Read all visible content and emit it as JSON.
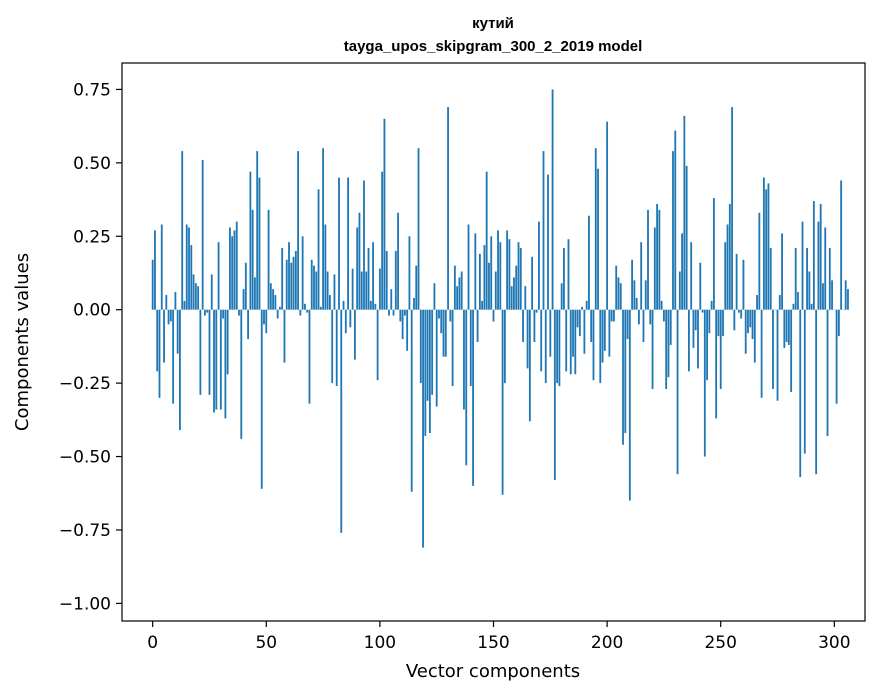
{
  "chart_data": {
    "type": "bar",
    "title": "кутий",
    "subtitle": "tayga_upos_skipgram_300_2_2019 model",
    "xlabel": "Vector components",
    "ylabel": "Components values",
    "xlim": [
      -13.5,
      313.5
    ],
    "ylim": [
      -1.06,
      0.84
    ],
    "xticks": [
      0,
      50,
      100,
      150,
      200,
      250,
      300
    ],
    "yticks": [
      -1.0,
      -0.75,
      -0.5,
      -0.25,
      0.0,
      0.25,
      0.5,
      0.75
    ],
    "ytick_labels": [
      "−1.00",
      "−0.75",
      "−0.50",
      "−0.25",
      "0.00",
      "0.25",
      "0.50",
      "0.75"
    ],
    "bar_color": "#1f77b4",
    "grid": false,
    "values": [
      0.17,
      0.27,
      -0.21,
      -0.3,
      0.29,
      -0.18,
      0.05,
      -0.05,
      -0.04,
      -0.32,
      0.06,
      -0.15,
      -0.41,
      0.54,
      0.03,
      0.29,
      0.28,
      0.22,
      0.12,
      0.09,
      0.08,
      -0.29,
      0.51,
      -0.02,
      -0.01,
      -0.29,
      0.12,
      -0.35,
      -0.34,
      0.23,
      -0.34,
      -0.03,
      -0.37,
      -0.22,
      0.28,
      0.25,
      0.27,
      0.3,
      -0.02,
      -0.44,
      0.07,
      0.16,
      -0.1,
      0.47,
      0.34,
      0.11,
      0.54,
      0.45,
      -0.61,
      -0.05,
      -0.08,
      0.34,
      0.09,
      0.07,
      0.05,
      -0.03,
      0.01,
      0.21,
      -0.18,
      0.17,
      0.23,
      0.16,
      0.18,
      0.2,
      0.54,
      -0.02,
      0.25,
      0.02,
      -0.01,
      -0.32,
      0.17,
      0.15,
      0.13,
      0.41,
      0.01,
      0.55,
      0.29,
      0.13,
      0.05,
      -0.25,
      0.12,
      -0.26,
      0.45,
      -0.76,
      0.03,
      -0.08,
      0.45,
      -0.06,
      0.14,
      -0.17,
      0.28,
      0.33,
      0.13,
      0.44,
      0.13,
      0.21,
      0.03,
      0.23,
      0.02,
      -0.24,
      0.14,
      0.47,
      0.65,
      0.2,
      -0.02,
      0.07,
      -0.02,
      0.2,
      0.33,
      -0.04,
      -0.1,
      -0.02,
      -0.14,
      0.25,
      -0.62,
      0.04,
      0.15,
      0.55,
      -0.25,
      -0.81,
      -0.43,
      -0.31,
      -0.42,
      -0.29,
      0.09,
      -0.33,
      -0.03,
      -0.08,
      -0.16,
      -0.16,
      0.69,
      -0.04,
      -0.26,
      0.15,
      0.08,
      0.11,
      0.13,
      -0.34,
      -0.53,
      0.29,
      -0.26,
      -0.6,
      0.26,
      -0.11,
      0.19,
      0.03,
      0.22,
      0.47,
      0.16,
      0.25,
      -0.04,
      0.13,
      0.27,
      0.23,
      -0.63,
      -0.25,
      0.27,
      0.24,
      0.08,
      0.11,
      0.15,
      0.23,
      0.21,
      -0.11,
      0.08,
      -0.2,
      -0.38,
      0.18,
      -0.11,
      -0.01,
      0.3,
      -0.21,
      0.54,
      -0.25,
      0.46,
      -0.16,
      0.75,
      -0.58,
      -0.25,
      -0.26,
      0.09,
      0.21,
      -0.21,
      0.24,
      -0.22,
      -0.16,
      -0.22,
      -0.06,
      -0.09,
      0.01,
      -0.15,
      0.03,
      0.32,
      -0.11,
      -0.24,
      0.55,
      0.48,
      -0.25,
      -0.18,
      -0.14,
      0.64,
      -0.16,
      -0.04,
      -0.04,
      0.15,
      0.11,
      0.09,
      -0.46,
      -0.42,
      -0.1,
      -0.65,
      0.17,
      0.1,
      0.04,
      -0.05,
      0.23,
      -0.11,
      0.1,
      0.34,
      -0.05,
      -0.27,
      0.28,
      0.36,
      0.34,
      0.03,
      -0.04,
      -0.27,
      -0.23,
      -0.12,
      0.54,
      0.61,
      -0.56,
      0.13,
      0.26,
      0.66,
      0.49,
      -0.21,
      0.23,
      -0.13,
      -0.07,
      -0.2,
      0.16,
      -0.01,
      -0.5,
      -0.24,
      -0.08,
      0.03,
      0.38,
      -0.37,
      -0.09,
      -0.27,
      -0.09,
      0.23,
      0.29,
      0.36,
      0.69,
      -0.07,
      0.19,
      -0.01,
      -0.03,
      0.17,
      -0.15,
      -0.08,
      -0.06,
      -0.1,
      -0.18,
      0.05,
      0.33,
      -0.3,
      0.45,
      0.41,
      0.43,
      0.21,
      -0.27,
      0.0,
      -0.31,
      0.05,
      0.26,
      -0.13,
      -0.11,
      -0.12,
      -0.28,
      0.02,
      0.21,
      0.06,
      -0.57,
      0.3,
      -0.49,
      0.21,
      0.13,
      0.02,
      0.37,
      -0.56,
      0.3,
      0.36,
      0.09,
      0.28,
      -0.43,
      0.21,
      0.1,
      0.0,
      -0.32,
      -0.09,
      0.44,
      0.0,
      0.1,
      0.07
    ]
  }
}
